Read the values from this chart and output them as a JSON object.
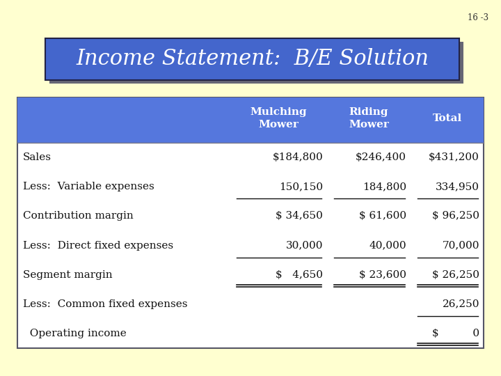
{
  "bg_color": "#FFFFD0",
  "slide_number": "16 -3",
  "title": "Income Statement:  B/E Solution",
  "title_bg": "#4466CC",
  "title_shadow": "#333355",
  "title_text_color": "#FFFFFF",
  "table_header_bg": "#5577DD",
  "table_header_text_color": "#FFFFFF",
  "table_bg": "#FFFFFF",
  "text_color": "#111111",
  "col_headers": [
    "Mulching\nMower",
    "Riding\nMower",
    "Total"
  ],
  "rows": [
    [
      "Sales",
      "$184,800",
      "$246,400",
      "$431,200"
    ],
    [
      "Less:  Variable expenses",
      "150,150",
      "184,800",
      "334,950"
    ],
    [
      "Contribution margin",
      "$ 34,650",
      "$ 61,600",
      "$ 96,250"
    ],
    [
      "Less:  Direct fixed expenses",
      "30,000",
      "40,000",
      "70,000"
    ],
    [
      "Segment margin",
      "$   4,650",
      "$ 23,600",
      "$ 26,250"
    ],
    [
      "Less:  Common fixed expenses",
      "",
      "",
      "26,250"
    ],
    [
      "  Operating income",
      "",
      "",
      "$          0"
    ]
  ],
  "title_fontsize": 22,
  "header_fontsize": 11,
  "data_fontsize": 11
}
